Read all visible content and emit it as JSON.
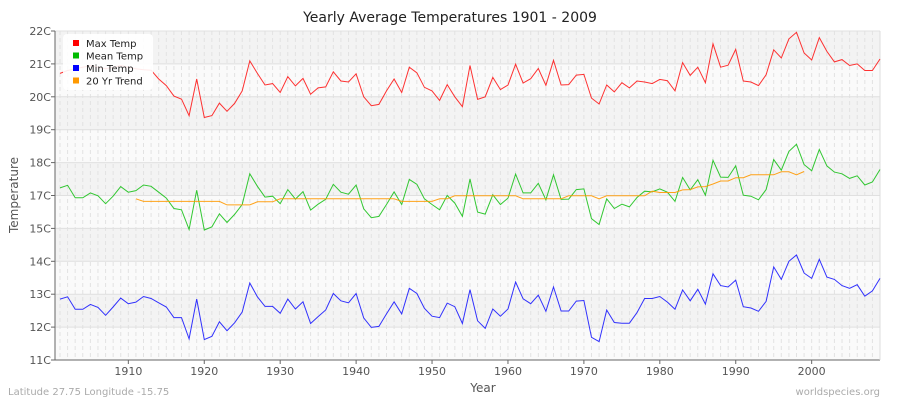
{
  "chart_data": {
    "type": "line",
    "title": "Yearly Average Temperatures 1901 - 2009",
    "xlabel": "Year",
    "ylabel": "Temperature",
    "xlim": [
      1901,
      2009
    ],
    "x_ticks": [
      1910,
      1920,
      1930,
      1940,
      1950,
      1960,
      1970,
      1980,
      1990,
      2000
    ],
    "y_ticks": [
      22,
      21,
      20,
      19,
      18,
      17,
      15,
      14,
      13,
      12,
      11
    ],
    "y_tick_labels": [
      "22C",
      "21C",
      "20C",
      "19C",
      "18C",
      "17C",
      "15C",
      "14C",
      "13C",
      "12C",
      "11C"
    ],
    "grid": true,
    "legend_position": "top-left",
    "start_year": 1901,
    "series": [
      {
        "name": "Max Temp",
        "color": "#ff0000",
        "start_year": 1901,
        "values": [
          20.71,
          20.8,
          20.85,
          20.9,
          20.95,
          20.9,
          20.85,
          20.9,
          20.95,
          20.9,
          20.85,
          20.82,
          20.81,
          20.54,
          20.34,
          20.02,
          19.93,
          19.43,
          20.54,
          19.37,
          19.43,
          19.81,
          19.56,
          19.8,
          20.18,
          21.09,
          20.71,
          20.36,
          20.4,
          20.13,
          20.61,
          20.33,
          20.56,
          20.08,
          20.27,
          20.3,
          20.76,
          20.48,
          20.45,
          20.7,
          20.0,
          19.73,
          19.77,
          20.18,
          20.54,
          20.13,
          20.9,
          20.73,
          20.29,
          20.18,
          19.89,
          20.37,
          20.0,
          19.7,
          20.95,
          19.92,
          20.0,
          20.59,
          20.22,
          20.36,
          20.99,
          20.42,
          20.55,
          20.86,
          20.35,
          21.11,
          20.36,
          20.37,
          20.66,
          20.68,
          19.96,
          19.78,
          20.36,
          20.15,
          20.43,
          20.27,
          20.48,
          20.45,
          20.4,
          20.53,
          20.49,
          20.18,
          21.04,
          20.65,
          20.9,
          20.43,
          21.61,
          20.9,
          20.96,
          21.44,
          20.48,
          20.45,
          20.34,
          20.67,
          21.43,
          21.18,
          21.76,
          21.96,
          21.33,
          21.12,
          21.8,
          21.38,
          21.06,
          21.13,
          20.95,
          21.0,
          20.8,
          20.8,
          21.15
        ]
      },
      {
        "name": "Mean Temp",
        "color": "#00bb00",
        "start_year": 1901,
        "values": [
          17.23,
          17.31,
          16.86,
          16.86,
          17.08,
          16.98,
          16.5,
          16.96,
          17.27,
          17.1,
          17.15,
          17.32,
          17.28,
          17.1,
          16.84,
          16.21,
          16.13,
          14.97,
          17.16,
          14.95,
          15.1,
          15.89,
          15.36,
          15.85,
          16.45,
          17.66,
          17.28,
          16.9,
          16.96,
          16.5,
          17.18,
          16.78,
          17.12,
          16.11,
          16.47,
          16.77,
          17.34,
          17.1,
          17.04,
          17.32,
          16.19,
          15.65,
          15.73,
          16.45,
          17.11,
          16.45,
          17.49,
          17.34,
          16.8,
          16.45,
          16.13,
          17.0,
          16.54,
          15.73,
          17.5,
          15.99,
          15.87,
          17.02,
          16.45,
          16.84,
          17.65,
          17.08,
          17.08,
          17.37,
          16.74,
          17.63,
          16.76,
          16.78,
          17.18,
          17.2,
          15.59,
          15.24,
          16.8,
          16.21,
          16.47,
          16.31,
          16.88,
          17.13,
          17.11,
          17.2,
          17.1,
          16.64,
          17.55,
          17.17,
          17.48,
          17.01,
          18.07,
          17.56,
          17.55,
          17.9,
          17.01,
          16.96,
          16.74,
          17.18,
          18.09,
          17.77,
          18.34,
          18.56,
          17.94,
          17.75,
          18.4,
          17.9,
          17.71,
          17.66,
          17.52,
          17.6,
          17.32,
          17.41,
          17.79
        ]
      },
      {
        "name": "Min Temp",
        "color": "#0000ff",
        "start_year": 1901,
        "values": [
          12.85,
          12.92,
          12.54,
          12.54,
          12.69,
          12.6,
          12.36,
          12.61,
          12.88,
          12.71,
          12.76,
          12.93,
          12.87,
          12.74,
          12.61,
          12.29,
          12.29,
          11.64,
          12.85,
          11.62,
          11.72,
          12.16,
          11.89,
          12.13,
          12.46,
          13.34,
          12.92,
          12.63,
          12.63,
          12.42,
          12.85,
          12.55,
          12.77,
          12.11,
          12.32,
          12.52,
          13.02,
          12.8,
          12.74,
          13.02,
          12.28,
          11.99,
          12.02,
          12.4,
          12.77,
          12.4,
          13.18,
          13.02,
          12.57,
          12.33,
          12.29,
          12.73,
          12.62,
          12.11,
          13.14,
          12.19,
          11.96,
          12.55,
          12.33,
          12.55,
          13.37,
          12.86,
          12.71,
          12.97,
          12.48,
          13.22,
          12.49,
          12.49,
          12.79,
          12.81,
          11.69,
          11.56,
          12.52,
          12.14,
          12.12,
          12.12,
          12.44,
          12.87,
          12.87,
          12.93,
          12.76,
          12.54,
          13.13,
          12.8,
          13.15,
          12.7,
          13.62,
          13.26,
          13.22,
          13.43,
          12.62,
          12.58,
          12.48,
          12.78,
          13.83,
          13.45,
          14.0,
          14.19,
          13.64,
          13.48,
          14.06,
          13.52,
          13.45,
          13.26,
          13.18,
          13.29,
          12.94,
          13.1,
          13.48
        ]
      },
      {
        "name": "20 Yr Trend",
        "color": "#ff9900",
        "start_year": 1911,
        "values": [
          16.8,
          16.64,
          16.64,
          16.64,
          16.64,
          16.64,
          16.64,
          16.64,
          16.64,
          16.64,
          16.64,
          16.64,
          16.43,
          16.43,
          16.43,
          16.43,
          16.62,
          16.62,
          16.62,
          16.8,
          16.8,
          16.8,
          16.8,
          16.8,
          16.8,
          16.8,
          16.8,
          16.8,
          16.8,
          16.8,
          16.8,
          16.8,
          16.8,
          16.8,
          16.8,
          16.64,
          16.64,
          16.64,
          16.64,
          16.64,
          16.8,
          16.8,
          16.98,
          16.98,
          16.98,
          16.98,
          16.98,
          16.98,
          16.98,
          16.98,
          16.98,
          16.8,
          16.8,
          16.8,
          16.8,
          16.8,
          16.8,
          16.98,
          16.98,
          16.98,
          16.98,
          16.8,
          16.98,
          16.98,
          16.98,
          16.98,
          16.98,
          16.98,
          17.13,
          17.09,
          17.09,
          17.09,
          17.17,
          17.18,
          17.26,
          17.27,
          17.35,
          17.44,
          17.44,
          17.54,
          17.54,
          17.63,
          17.63,
          17.63,
          17.63,
          17.72,
          17.72,
          17.63,
          17.73
        ]
      }
    ]
  },
  "footer": {
    "location": "Latitude 27.75 Longitude -15.75",
    "site": "worldspecies.org"
  }
}
